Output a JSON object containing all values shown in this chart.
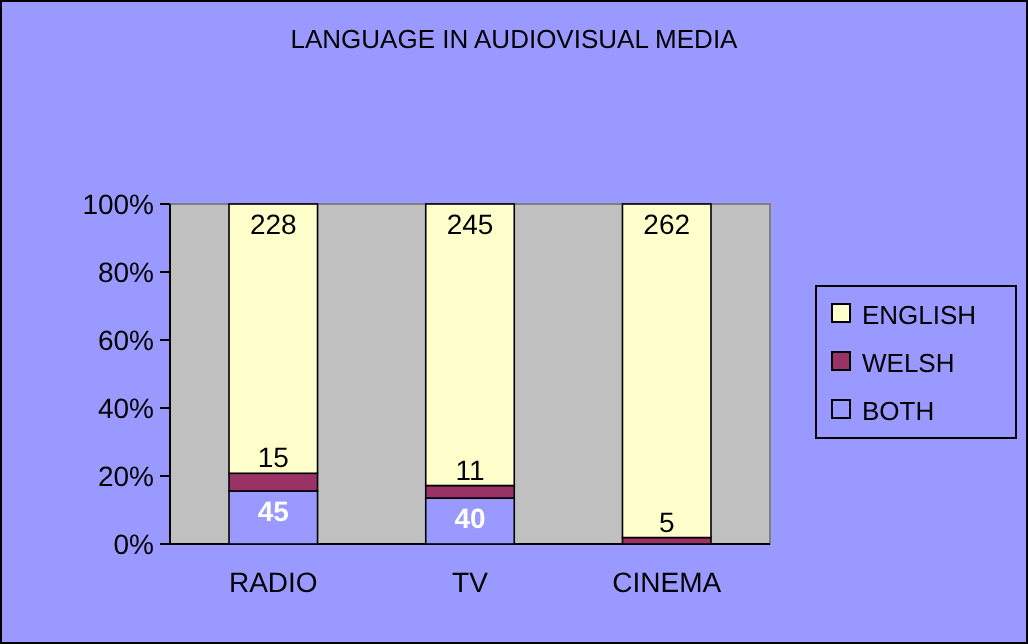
{
  "chart_data": {
    "type": "bar",
    "title": "LANGUAGE IN AUDIOVISUAL MEDIA",
    "stacked": true,
    "categories": [
      "RADIO",
      "TV",
      "CINEMA"
    ],
    "series": [
      {
        "name": "BOTH",
        "color": "#9999ff",
        "values": [
          15.6,
          13.5,
          0
        ]
      },
      {
        "name": "WELSH",
        "color": "#993366",
        "values": [
          5.2,
          3.7,
          1.9
        ]
      },
      {
        "name": "ENGLISH",
        "color": "#ffffcc",
        "values": [
          79.2,
          82.8,
          98.1
        ]
      }
    ],
    "annotations": [
      {
        "text": "45",
        "x": "RADIO",
        "y": 15.6
      },
      {
        "text": "15",
        "x": "RADIO",
        "y": 20.8
      },
      {
        "text": "228",
        "x": "RADIO",
        "y": 100
      },
      {
        "text": "40",
        "x": "TV",
        "y": 13.5
      },
      {
        "text": "11",
        "x": "TV",
        "y": 17.2
      },
      {
        "text": "245",
        "x": "TV",
        "y": 100
      },
      {
        "text": "5",
        "x": "CINEMA",
        "y": 1.9
      },
      {
        "text": "262",
        "x": "CINEMA",
        "y": 100
      }
    ],
    "ylim": [
      0,
      100
    ],
    "yticks": [
      {
        "value": 0,
        "label": "0%"
      },
      {
        "value": 20,
        "label": "20%"
      },
      {
        "value": 40,
        "label": "40%"
      },
      {
        "value": 60,
        "label": "60%"
      },
      {
        "value": 80,
        "label": "80%"
      },
      {
        "value": 100,
        "label": "100%"
      }
    ],
    "legend": "right"
  }
}
